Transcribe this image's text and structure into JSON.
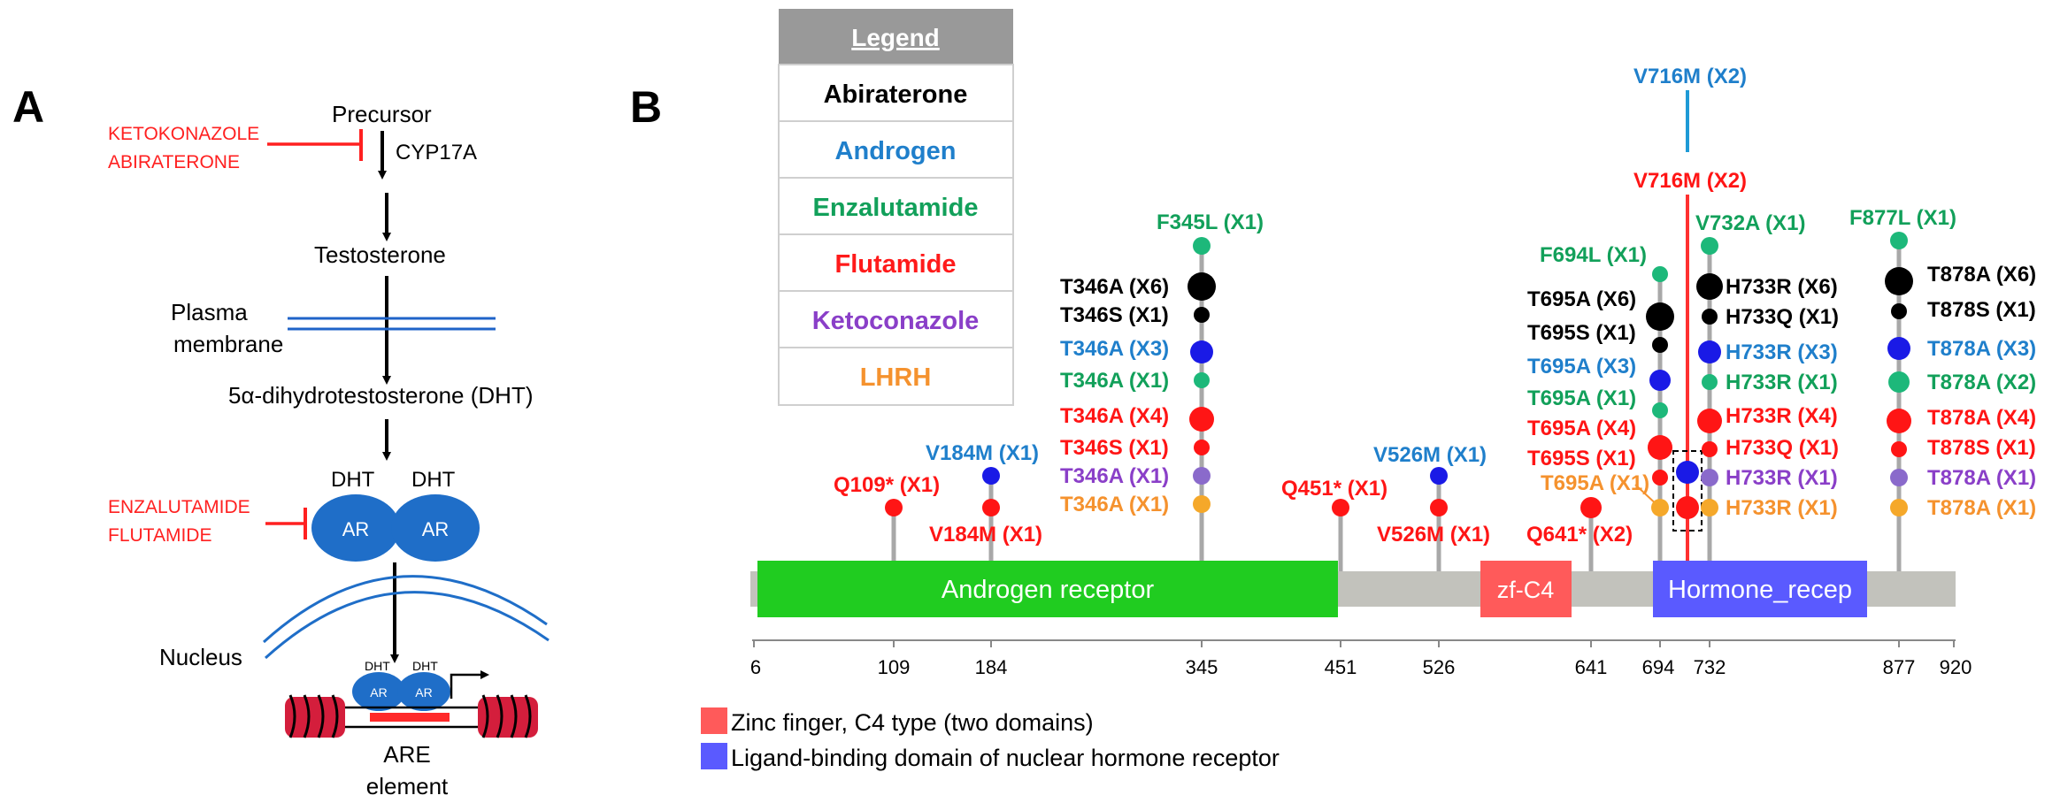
{
  "colors": {
    "abiraterone": "#000000",
    "androgen": "#1f7fcb",
    "enzalutamide": "#12a05a",
    "flutamide": "#ff1a1a",
    "ketoconazole": "#8a3fc8",
    "lhrh": "#f5922e",
    "inhibitor": "#ff2020",
    "domain_green": "#20cc20",
    "domain_zf": "#ff5a5a",
    "domain_hr": "#5a5aff",
    "backbone": "#c2c2bc",
    "stick": "#a8a8a8",
    "dot_black": "#000000",
    "dot_blue": "#1a1ae6",
    "dot_green": "#1db87a",
    "dot_red": "#ff1515",
    "dot_purple": "#8a6acb",
    "dot_orange": "#f5a82a"
  },
  "panel_a": {
    "label": "A",
    "precursor": "Precursor",
    "cyp17a": "CYP17A",
    "inhibitors_top": [
      "KETOKONAZOLE",
      "ABIRATERONE"
    ],
    "testosterone": "Testosterone",
    "plasma_membrane": [
      "Plasma",
      "membrane"
    ],
    "dht_full": "5α-dihydrotestosterone (DHT)",
    "dht_left": "DHT",
    "dht_right": "DHT",
    "ar": "AR",
    "inhibitors_bottom": [
      "ENZALUTAMIDE",
      "FLUTAMIDE"
    ],
    "nucleus": "Nucleus",
    "dht_small": "DHT",
    "ar_small": "AR",
    "are": [
      "ARE",
      "element"
    ]
  },
  "panel_b": {
    "label": "B",
    "legend": {
      "title": "Legend",
      "items": [
        {
          "name": "Abiraterone",
          "color": "#000000"
        },
        {
          "name": "Androgen",
          "color": "#1f7fcb"
        },
        {
          "name": "Enzalutamide",
          "color": "#12a05a"
        },
        {
          "name": "Flutamide",
          "color": "#ff1a1a"
        },
        {
          "name": "Ketoconazole",
          "color": "#8a3fc8"
        },
        {
          "name": "LHRH",
          "color": "#f5922e"
        }
      ]
    },
    "domains": [
      {
        "name": "Androgen receptor",
        "start": 6,
        "end": 451
      },
      {
        "name": "zf-C4",
        "start": 560,
        "end": 620
      },
      {
        "name": "Hormone_recep",
        "start": 685,
        "end": 860
      }
    ],
    "axis_ticks": [
      6,
      109,
      184,
      345,
      451,
      526,
      641,
      694,
      732,
      877,
      920
    ],
    "footnotes": [
      {
        "text": "Zinc finger, C4 type (two domains)",
        "color": "#ff5a5a"
      },
      {
        "text": "Ligand-binding domain of nuclear hormone receptor",
        "color": "#5a5aff"
      }
    ],
    "labels": {
      "q109": "Q109* (X1)",
      "v184m_top": "V184M (X1)",
      "v184m_bot": "V184M (X1)",
      "f345l": "F345L (X1)",
      "t346a_x6": "T346A (X6)",
      "t346s_k": "T346S (X1)",
      "t346a_x3": "T346A (X3)",
      "t346a_g": "T346A (X1)",
      "t346a_x4": "T346A (X4)",
      "t346s_r": "T346S (X1)",
      "t346a_p": "T346A (X1)",
      "t346a_o": "T346A (X1)",
      "q451": "Q451* (X1)",
      "v526m_top": "V526M (X1)",
      "v526m_bot": "V526M (X1)",
      "q641": "Q641* (X2)",
      "f694l": "F694L (X1)",
      "t695a_x6": "T695A (X6)",
      "t695s_k": "T695S (X1)",
      "t695a_x3": "T695A (X3)",
      "t695a_g": "T695A (X1)",
      "t695a_x4": "T695A (X4)",
      "t695s_r": "T695S (X1)",
      "t695a_o": "T695A (X1)",
      "v716m_blue": "V716M (X2)",
      "v716m_red": "V716M (X2)",
      "v732a": "V732A (X1)",
      "h733r_x6": "H733R (X6)",
      "h733q_k": "H733Q (X1)",
      "h733r_x3": "H733R (X3)",
      "h733r_g": "H733R (X1)",
      "h733r_x4": "H733R (X4)",
      "h733q_r": "H733Q (X1)",
      "h733r_p": "H733R (X1)",
      "h733r_o": "H733R (X1)",
      "f877l": "F877L (X1)",
      "t878a_x6": "T878A (X6)",
      "t878s_k": "T878S (X1)",
      "t878a_x3": "T878A (X3)",
      "t878a_x2": "T878A (X2)",
      "t878a_x4": "T878A (X4)",
      "t878s_r": "T878S (X1)",
      "t878a_p": "T878A (X1)",
      "t878a_o": "T878A (X1)"
    }
  }
}
